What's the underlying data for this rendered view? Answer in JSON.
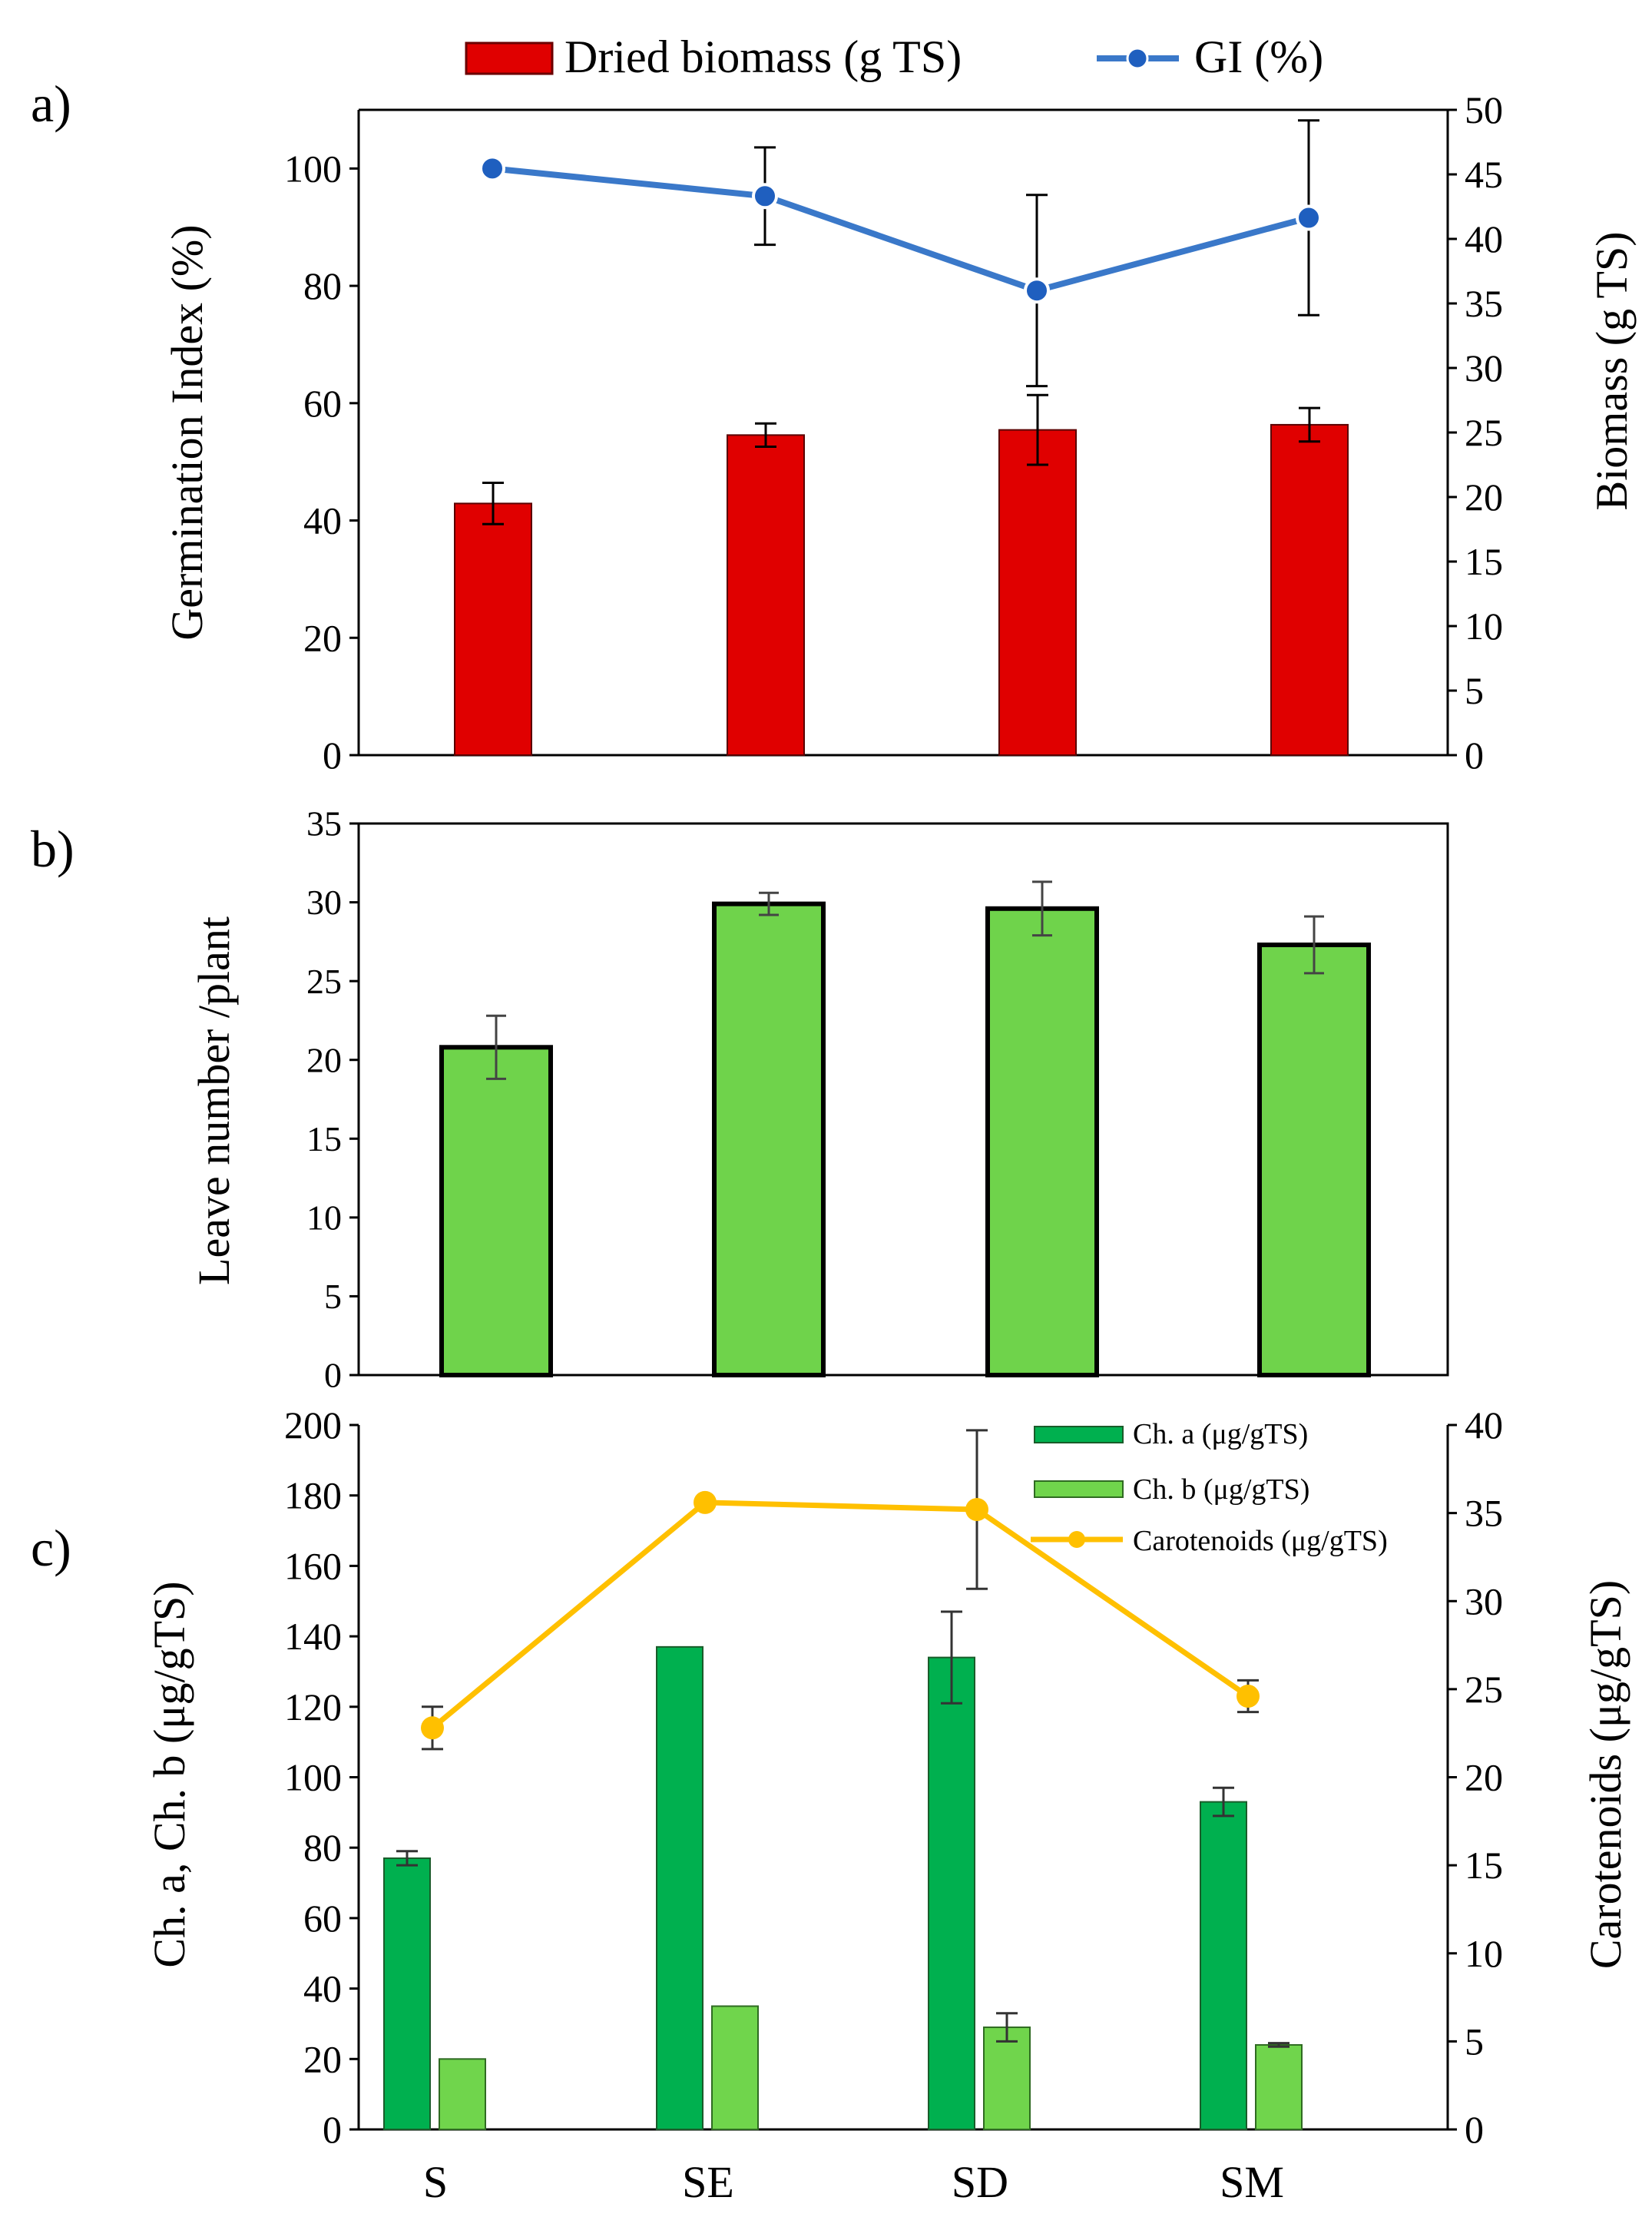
{
  "legend_top": {
    "bar_label": "Dried biomass (g TS)",
    "line_label": "GI (%)"
  },
  "categories": [
    "S",
    "SE",
    "SD",
    "SM"
  ],
  "colors": {
    "biomass_bar": "#e00000",
    "gi_line": "#3a78c9",
    "gi_marker": "#1f5fbf",
    "leaf_bar": "#6fd34b",
    "cha_bar": "#00b04f",
    "chb_bar": "#70d54c",
    "carotenoid_line": "#ffc000"
  },
  "chart_data": [
    {
      "id": "a",
      "panel_label": "a)",
      "type": "bar",
      "categories": [
        "S",
        "SE",
        "SD",
        "SM"
      ],
      "series": [
        {
          "name": "Dried biomass (g TS)",
          "kind": "bar",
          "axis": "right",
          "values": [
            19.5,
            24.8,
            25.2,
            25.6
          ],
          "errors": [
            1.6,
            0.9,
            2.7,
            1.3
          ]
        },
        {
          "name": "GI (%)",
          "kind": "line",
          "axis": "left",
          "values": [
            100.0,
            95.3,
            79.2,
            91.6
          ],
          "errors": [
            0,
            8.3,
            16.3,
            16.6
          ]
        }
      ],
      "ylabel": "Germination Index (%)",
      "ylim": [
        0,
        110
      ],
      "yticks": [
        "0",
        "20",
        "40",
        "60",
        "80",
        "100"
      ],
      "y2label": "Biomass (g TS)",
      "y2lim": [
        0,
        50
      ],
      "y2ticks": [
        "0",
        "5",
        "10",
        "15",
        "20",
        "25",
        "30",
        "35",
        "40",
        "45",
        "50"
      ]
    },
    {
      "id": "b",
      "panel_label": "b)",
      "type": "bar",
      "categories": [
        "S",
        "SE",
        "SD",
        "SM"
      ],
      "series": [
        {
          "kind": "bar",
          "axis": "left",
          "values": [
            20.8,
            29.9,
            29.6,
            27.3
          ],
          "errors": [
            2.0,
            0.7,
            1.7,
            1.8
          ]
        }
      ],
      "ylabel": "Leave number /plant",
      "ylim": [
        0,
        35
      ],
      "yticks": [
        "0",
        "5",
        "10",
        "15",
        "20",
        "25",
        "30",
        "35"
      ]
    },
    {
      "id": "c",
      "panel_label": "c)",
      "type": "bar",
      "categories": [
        "S",
        "SE",
        "SD",
        "SM"
      ],
      "series": [
        {
          "name": "Ch. a (μg/gTS)",
          "kind": "bar",
          "axis": "left",
          "values": [
            77,
            137,
            134,
            93
          ],
          "errors": [
            2,
            0,
            13,
            4
          ]
        },
        {
          "name": "Ch. b (μg/gTS)",
          "kind": "bar",
          "axis": "left",
          "values": [
            20,
            35,
            29,
            24
          ],
          "errors": [
            0,
            0,
            4,
            0.5
          ]
        },
        {
          "name": "Carotenoids (μg/gTS)",
          "kind": "line",
          "axis": "right",
          "values": [
            22.8,
            35.6,
            35.2,
            24.6
          ],
          "errors": [
            1.2,
            0,
            4.5,
            0.9
          ]
        }
      ],
      "ylabel": "Ch. a, Ch. b (μg/gTS)",
      "ylim": [
        0,
        200
      ],
      "yticks": [
        "0",
        "20",
        "40",
        "60",
        "80",
        "100",
        "120",
        "140",
        "160",
        "180",
        "200"
      ],
      "y2label": "Carotenoids (μg/gTS)",
      "y2lim": [
        0,
        40
      ],
      "y2ticks": [
        "0",
        "5",
        "10",
        "15",
        "20",
        "25",
        "30",
        "35",
        "40"
      ],
      "legend_position": "top-right"
    }
  ]
}
